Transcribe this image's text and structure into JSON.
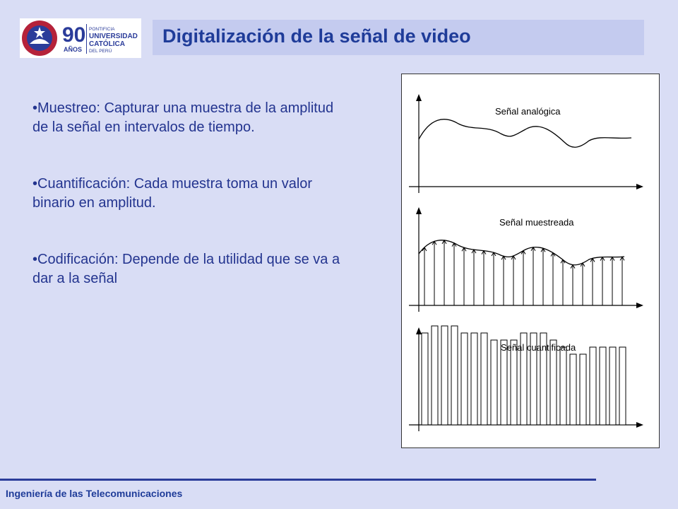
{
  "logo": {
    "seal_text": "",
    "number": "90",
    "years": "AÑOS",
    "line1": "PONTIFICIA",
    "line2": "UNIVERSIDAD",
    "line3": "CATÓLICA",
    "line4": "DEL PERÚ"
  },
  "slide": {
    "title": "Digitalización de la señal de video",
    "bullets": [
      "•Muestreo: Capturar una muestra de la amplitud de la señal en intervalos de tiempo.",
      "•Cuantificación: Cada muestra toma un valor binario en amplitud.",
      "•Codificación: Depende de la utilidad que se va a dar a  la señal"
    ]
  },
  "figure": {
    "labels": {
      "analog": "Señal analógica",
      "sampled": "Señal muestreada",
      "quantized": "Señal cuantificada"
    },
    "quantized_levels": [
      7,
      8,
      8,
      8,
      7,
      7,
      7,
      6,
      6,
      6,
      7,
      7,
      7,
      6,
      5,
      4,
      4,
      5,
      5,
      5,
      5
    ]
  },
  "footer": {
    "text": "Ingeniería de las Telecomunicaciones"
  },
  "colors": {
    "background": "#D9DDF5",
    "title_bar": "#C4CBEF",
    "text": "#23348F",
    "footer_line": "#2B3C9A"
  }
}
